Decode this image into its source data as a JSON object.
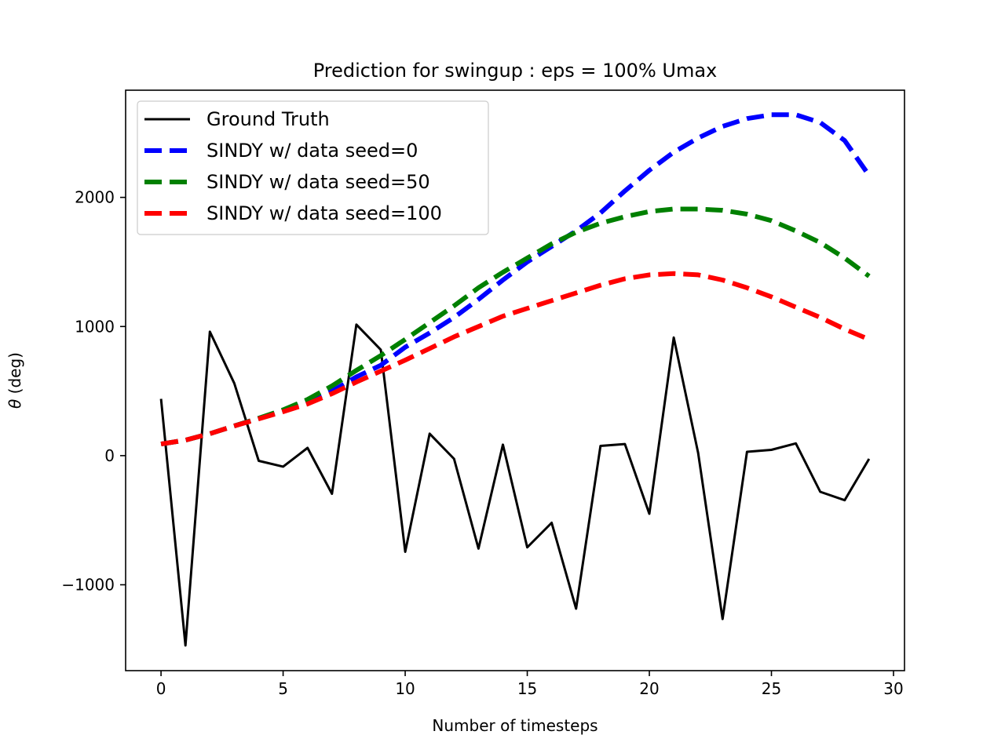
{
  "chart_data": {
    "type": "line",
    "title": "Prediction for swingup : eps = 100% Umax",
    "xlabel": "Number of timesteps",
    "ylabel": "(deg)",
    "ylabel_symbol": "θ",
    "xlim": [
      -1.45,
      30.45
    ],
    "ylim": [
      -1665,
      2830
    ],
    "xticks": [
      0,
      5,
      10,
      15,
      20,
      25,
      30
    ],
    "xtick_labels": [
      "0",
      "5",
      "10",
      "15",
      "20",
      "25",
      "30"
    ],
    "yticks": [
      -1000,
      0,
      1000,
      2000
    ],
    "ytick_labels": [
      "−1000",
      "0",
      "1000",
      "2000"
    ],
    "grid": false,
    "legend_position": "upper-left",
    "x": [
      0,
      1,
      2,
      3,
      4,
      5,
      6,
      7,
      8,
      9,
      10,
      11,
      12,
      13,
      14,
      15,
      16,
      17,
      18,
      19,
      20,
      21,
      22,
      23,
      24,
      25,
      26,
      27,
      28,
      29
    ],
    "series": [
      {
        "name": "Ground Truth",
        "color": "#000000",
        "style": "solid",
        "values": [
          440,
          -1470,
          960,
          560,
          -40,
          -85,
          60,
          -295,
          1015,
          820,
          -745,
          170,
          -25,
          -720,
          85,
          -710,
          -520,
          -1185,
          75,
          90,
          -450,
          915,
          20,
          -1265,
          30,
          45,
          95,
          -280,
          -345,
          -25
        ]
      },
      {
        "name": "SINDY w/ data seed=0",
        "color": "#0000ff",
        "style": "dashed",
        "values": [
          90,
          120,
          170,
          230,
          290,
          350,
          420,
          500,
          610,
          700,
          840,
          950,
          1070,
          1210,
          1360,
          1500,
          1620,
          1740,
          1880,
          2050,
          2210,
          2350,
          2460,
          2550,
          2610,
          2640,
          2640,
          2580,
          2440,
          2170
        ]
      },
      {
        "name": "SINDY w/ data seed=50",
        "color": "#008000",
        "style": "dashed",
        "values": [
          90,
          120,
          170,
          230,
          290,
          355,
          435,
          540,
          660,
          775,
          900,
          1030,
          1160,
          1300,
          1420,
          1530,
          1640,
          1730,
          1800,
          1850,
          1890,
          1910,
          1910,
          1900,
          1870,
          1820,
          1740,
          1650,
          1530,
          1390
        ]
      },
      {
        "name": "SINDY w/ data seed=100",
        "color": "#ff0000",
        "style": "dashed",
        "values": [
          90,
          120,
          170,
          230,
          285,
          340,
          400,
          480,
          570,
          655,
          740,
          830,
          920,
          1000,
          1080,
          1140,
          1200,
          1260,
          1320,
          1370,
          1400,
          1410,
          1400,
          1360,
          1300,
          1230,
          1150,
          1070,
          980,
          900
        ]
      }
    ]
  }
}
